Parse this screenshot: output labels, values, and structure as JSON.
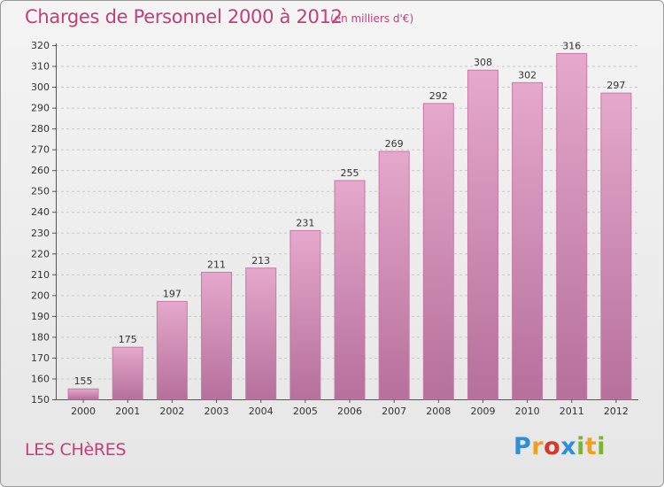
{
  "chart_data": {
    "type": "bar",
    "title": "Charges de Personnel 2000 à 2012",
    "subtitle": "(en milliers d'€)",
    "categories": [
      "2000",
      "2001",
      "2002",
      "2003",
      "2004",
      "2005",
      "2006",
      "2007",
      "2008",
      "2009",
      "2010",
      "2011",
      "2012"
    ],
    "values": [
      155,
      175,
      197,
      211,
      213,
      231,
      255,
      269,
      292,
      308,
      302,
      316,
      297
    ],
    "ylim": [
      150,
      320
    ],
    "yticks": [
      150,
      160,
      170,
      180,
      190,
      200,
      210,
      220,
      230,
      240,
      250,
      260,
      270,
      280,
      290,
      300,
      310,
      320
    ],
    "grid": true,
    "xlabel": "",
    "ylabel": ""
  },
  "commune": "LES CHèRES",
  "logo": {
    "letters": [
      "P",
      "r",
      "o",
      "x",
      "i",
      "t",
      "i"
    ],
    "colors": [
      "#2e8fd6",
      "#f0a020",
      "#d03a2a",
      "#2e8fd6",
      "#7ab52e",
      "#f0a020",
      "#7ab52e"
    ]
  },
  "colors": {
    "accent": "#c0407a",
    "bar_top": "#e6a8cc",
    "bar_bottom": "#b5709b"
  }
}
